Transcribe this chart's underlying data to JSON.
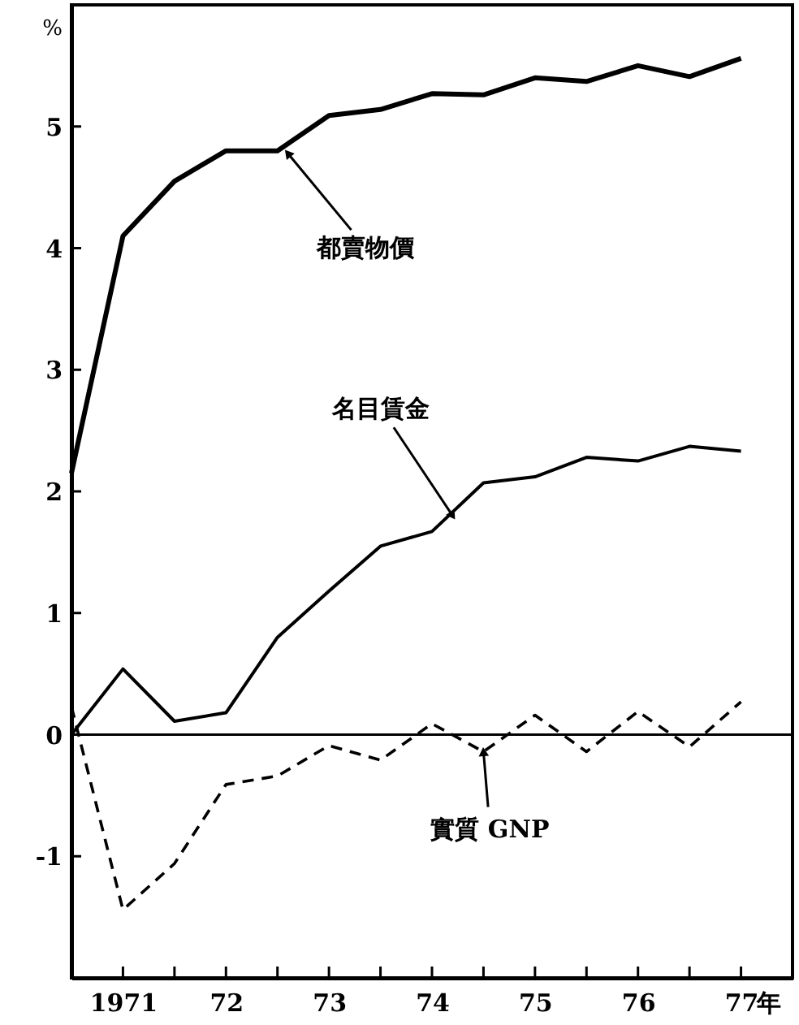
{
  "chart_data": {
    "type": "line",
    "ylabel": "%",
    "x": [
      1970.5,
      1971,
      1971.5,
      1972,
      1972.5,
      1973,
      1973.5,
      1974,
      1974.5,
      1975,
      1975.5,
      1976,
      1976.5,
      1977
    ],
    "series": [
      {
        "color": "#000000",
        "line_style": "solid",
        "values": [
          2.15,
          4.1,
          4.55,
          4.8,
          4.8,
          5.09,
          5.14,
          5.27,
          5.26,
          5.4,
          5.37,
          5.5,
          5.41,
          5.56
        ]
      },
      {
        "color": "#000000",
        "line_style": "solid",
        "values": [
          0,
          0.54,
          0.11,
          0.18,
          0.8,
          1.18,
          1.55,
          1.67,
          2.07,
          2.12,
          2.28,
          2.25,
          2.37,
          2.33
        ]
      },
      {
        "color": "#000000",
        "line_style": "dashed",
        "values": [
          0.23,
          -1.44,
          -1.06,
          -0.41,
          -0.34,
          -0.09,
          -0.21,
          0.09,
          -0.14,
          0.16,
          -0.14,
          0.19,
          -0.1,
          0.27
        ]
      }
    ],
    "xlim": [
      1970.5,
      1977.5
    ],
    "xticks": [
      {
        "value": 1971,
        "label": "1971"
      },
      {
        "value": 1971.5,
        "label": null
      },
      {
        "value": 1972,
        "label": "72"
      },
      {
        "value": 1972.5,
        "label": null
      },
      {
        "value": 1973,
        "label": "73"
      },
      {
        "value": 1973.5,
        "label": null
      },
      {
        "value": 1974,
        "label": "74"
      },
      {
        "value": 1974.5,
        "label": null
      },
      {
        "value": 1975,
        "label": "75"
      },
      {
        "value": 1975.5,
        "label": null
      },
      {
        "value": 1976,
        "label": "76"
      },
      {
        "value": 1976.5,
        "label": null
      },
      {
        "value": 1977,
        "label": "77"
      }
    ],
    "xlabel": "年",
    "ylim": [
      -2,
      6
    ],
    "yticks": [
      -1,
      0,
      1,
      2,
      3,
      4,
      5
    ],
    "ref_lines": [
      {
        "axis": "y",
        "value": 0,
        "color": "#000000",
        "line_style": "solid"
      }
    ],
    "annotations": [
      {
        "text": "都賣物價",
        "x": 1972.6,
        "y": 4.78
      },
      {
        "text": "名目賃金",
        "x": 1974.2,
        "y": 1.8
      },
      {
        "text": "實質 GNP",
        "x": 1974.5,
        "y": -0.14
      }
    ],
    "grid": false,
    "marker": "none"
  }
}
